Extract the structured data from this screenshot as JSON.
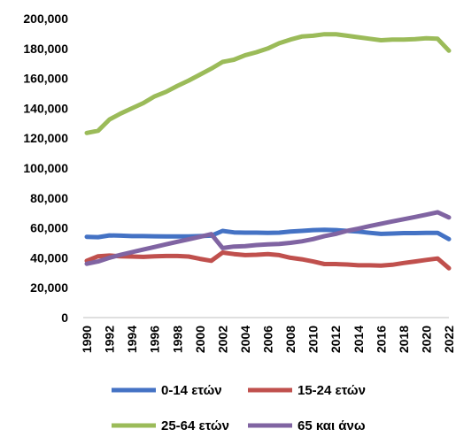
{
  "chart_data": {
    "type": "line",
    "x": [
      1990,
      1991,
      1992,
      1993,
      1994,
      1995,
      1996,
      1997,
      1998,
      1999,
      2000,
      2001,
      2002,
      2003,
      2004,
      2005,
      2006,
      2007,
      2008,
      2009,
      2010,
      2011,
      2012,
      2013,
      2014,
      2015,
      2016,
      2017,
      2018,
      2019,
      2020,
      2021,
      2022
    ],
    "x_tick_labels": [
      "1990",
      "1992",
      "1994",
      "1996",
      "1998",
      "2000",
      "2002",
      "2004",
      "2006",
      "2008",
      "2010",
      "2012",
      "2014",
      "2016",
      "2018",
      "2020",
      "2022"
    ],
    "y_tick_labels": [
      "0",
      "20,000",
      "40,000",
      "60,000",
      "80,000",
      "100,000",
      "120,000",
      "140,000",
      "160,000",
      "180,000",
      "200,000"
    ],
    "ylim": [
      0,
      200000
    ],
    "grid": false,
    "legend_position": "bottom",
    "series": [
      {
        "name": "0-14 ετών",
        "color": "#4472C4",
        "values": [
          54000,
          53800,
          55000,
          54800,
          54500,
          54500,
          54400,
          54300,
          54300,
          54300,
          54500,
          54800,
          58000,
          57000,
          56800,
          56800,
          56600,
          56800,
          57500,
          58000,
          58500,
          58700,
          58500,
          58000,
          57500,
          56700,
          56000,
          56200,
          56500,
          56500,
          56700,
          56700,
          52500
        ]
      },
      {
        "name": "15-24 ετών",
        "color": "#C0504D",
        "values": [
          38000,
          41000,
          41500,
          41000,
          40800,
          40600,
          41000,
          41200,
          41200,
          40800,
          39300,
          38000,
          43500,
          42500,
          41800,
          42000,
          42500,
          41800,
          40000,
          39000,
          37500,
          35800,
          35800,
          35500,
          35000,
          35000,
          34800,
          35300,
          36500,
          37500,
          38600,
          39500,
          33000
        ]
      },
      {
        "name": "25-64 ετών",
        "color": "#9BBB59",
        "values": [
          123500,
          125000,
          132500,
          136500,
          140000,
          143500,
          148000,
          151000,
          155000,
          158500,
          162500,
          166500,
          171000,
          172500,
          175500,
          177500,
          180000,
          183500,
          186000,
          188000,
          188500,
          189500,
          189500,
          188500,
          187500,
          186500,
          185500,
          186000,
          186000,
          186200,
          186800,
          186500,
          178500
        ]
      },
      {
        "name": "65 και άνω",
        "color": "#8064A2",
        "values": [
          36000,
          37500,
          40000,
          42000,
          43800,
          45500,
          47200,
          49000,
          50700,
          52300,
          54000,
          55800,
          46500,
          47500,
          47800,
          48500,
          49000,
          49300,
          50000,
          51000,
          52500,
          54500,
          56000,
          58000,
          59500,
          61200,
          62800,
          64300,
          65800,
          67300,
          68800,
          70500,
          67000
        ]
      }
    ]
  }
}
